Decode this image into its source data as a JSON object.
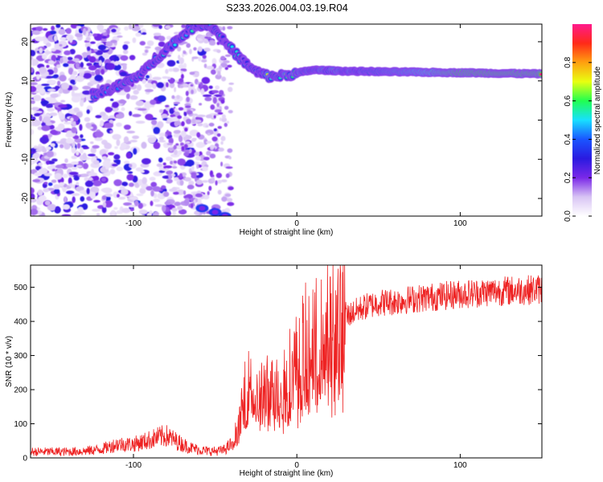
{
  "chart_data": [
    {
      "type": "heatmap",
      "title": "S233.2026.004.03.19.R04",
      "xlabel": "Height of straight line (km)",
      "ylabel": "Frequency (Hz)",
      "xlim": [
        -163,
        150
      ],
      "ylim": [
        -24.5,
        24.5
      ],
      "xticks": [
        -100,
        0,
        100
      ],
      "yticks": [
        -20,
        -10,
        0,
        10,
        20
      ],
      "colorbar": {
        "label": "Normalized spectral amplitude",
        "range": [
          0,
          1
        ],
        "ticks": [
          0.0,
          0.2,
          0.4,
          0.6,
          0.8
        ],
        "tick_labels": [
          "0.0",
          "0.2",
          "0.4",
          "0.6",
          "0.8"
        ],
        "colormap": [
          "#ffffff",
          "#d8c4f4",
          "#7a28e8",
          "#2a1ae0",
          "#1a55ff",
          "#18e0ff",
          "#20ff50",
          "#e8ff10",
          "#ffa010",
          "#ff2a18",
          "#ff1a8c"
        ]
      },
      "tone_track": [
        {
          "x": -125,
          "y": 6.5
        },
        {
          "x": -110,
          "y": 8.5
        },
        {
          "x": -100,
          "y": 10.5
        },
        {
          "x": -92,
          "y": 13
        },
        {
          "x": -84,
          "y": 16.5
        },
        {
          "x": -76,
          "y": 19.5
        },
        {
          "x": -66,
          "y": 23
        },
        {
          "x": -60,
          "y": 24.5
        },
        {
          "x": -52,
          "y": 24
        },
        {
          "x": -42,
          "y": 19
        },
        {
          "x": -34,
          "y": 15.5
        },
        {
          "x": -26,
          "y": 12.5
        },
        {
          "x": -16,
          "y": 11
        },
        {
          "x": -6,
          "y": 11.5
        },
        {
          "x": 0,
          "y": 12
        },
        {
          "x": 10,
          "y": 12.8
        },
        {
          "x": 30,
          "y": 12.5
        },
        {
          "x": 60,
          "y": 12.3
        },
        {
          "x": 100,
          "y": 12.1
        },
        {
          "x": 150,
          "y": 11.8
        }
      ],
      "secondary_tone": [
        {
          "x": -58,
          "y": -22.5
        },
        {
          "x": -50,
          "y": -23.5
        },
        {
          "x": -44,
          "y": -24.5
        }
      ]
    },
    {
      "type": "line",
      "xlabel": "Height of straight line (km)",
      "ylabel": "SNR (10 * v/v)",
      "xlim": [
        -163,
        150
      ],
      "ylim": [
        0,
        565
      ],
      "xticks": [
        -100,
        0,
        100
      ],
      "yticks": [
        0,
        100,
        200,
        300,
        400,
        500
      ],
      "color": "#ee2222",
      "series": [
        {
          "name": "SNR",
          "x": [
            -163,
            -150,
            -140,
            -130,
            -120,
            -110,
            -100,
            -92,
            -85,
            -80,
            -75,
            -70,
            -65,
            -60,
            -55,
            -50,
            -45,
            -40,
            -35,
            -32,
            -28,
            -25,
            -20,
            -15,
            -10,
            -5,
            0,
            5,
            10,
            15,
            20,
            25,
            30,
            40,
            50,
            60,
            70,
            80,
            90,
            100,
            110,
            120,
            130,
            140,
            150
          ],
          "values": [
            18,
            18,
            18,
            20,
            25,
            40,
            40,
            50,
            60,
            65,
            52,
            40,
            30,
            24,
            20,
            20,
            22,
            40,
            100,
            180,
            230,
            170,
            200,
            195,
            215,
            250,
            280,
            330,
            355,
            345,
            390,
            400,
            415,
            440,
            455,
            458,
            465,
            470,
            475,
            480,
            483,
            488,
            490,
            492,
            495
          ]
        }
      ]
    }
  ]
}
